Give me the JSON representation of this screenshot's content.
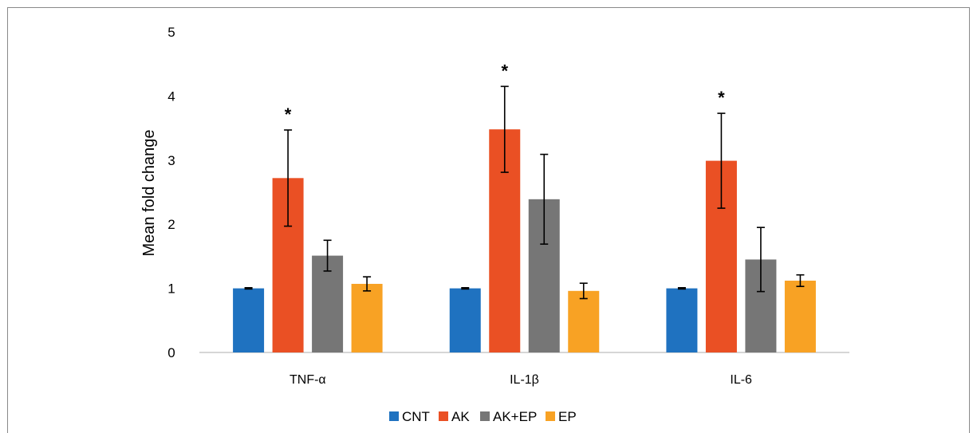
{
  "chart_data": {
    "type": "bar",
    "title": "",
    "xlabel": "",
    "ylabel": "Mean fold change",
    "ylim": [
      0,
      5
    ],
    "yticks": [
      0,
      1,
      2,
      3,
      4,
      5
    ],
    "categories": [
      "TNF-α",
      "IL-1β",
      "IL-6"
    ],
    "series": [
      {
        "name": "CNT",
        "color": "#1f72c0",
        "values": [
          1.0,
          1.0,
          1.0
        ],
        "errors": [
          0.01,
          0.01,
          0.01
        ]
      },
      {
        "name": "AK",
        "color": "#ea5024",
        "values": [
          2.72,
          3.48,
          2.99
        ],
        "errors": [
          0.75,
          0.67,
          0.74
        ]
      },
      {
        "name": "AK+EP",
        "color": "#767676",
        "values": [
          1.51,
          2.39,
          1.45
        ],
        "errors": [
          0.24,
          0.7,
          0.5
        ]
      },
      {
        "name": "EP",
        "color": "#f8a224",
        "values": [
          1.07,
          0.96,
          1.12
        ],
        "errors": [
          0.11,
          0.12,
          0.09
        ]
      }
    ],
    "annotations": [
      {
        "text": "*",
        "category": "TNF-α",
        "series": "AK"
      },
      {
        "text": "*",
        "category": "IL-1β",
        "series": "AK"
      },
      {
        "text": "*",
        "category": "IL-6",
        "series": "AK"
      }
    ],
    "grid": false,
    "legend_position": "bottom"
  }
}
